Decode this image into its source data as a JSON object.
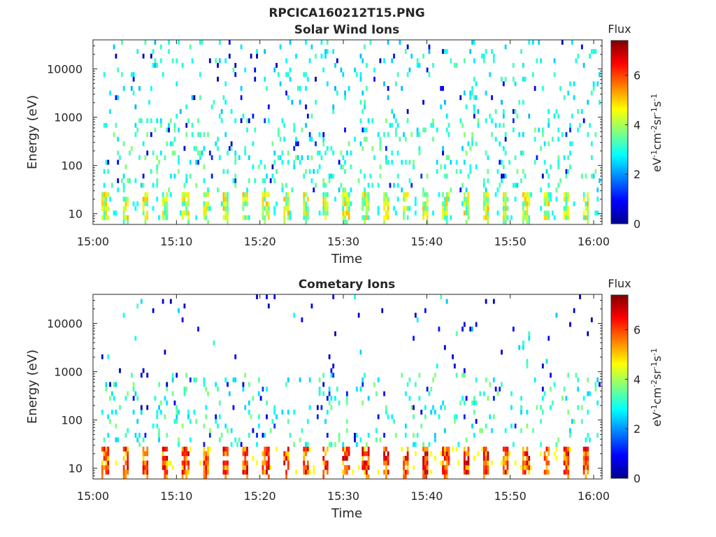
{
  "figure_title": "RPCICA160212T15.PNG",
  "colors": {
    "axis": "#262626",
    "colormap": [
      "#00008f",
      "#0000ff",
      "#0080ff",
      "#00ffff",
      "#80ff80",
      "#ffff00",
      "#ff8000",
      "#ff0000",
      "#800000"
    ]
  },
  "chart_data": [
    {
      "type": "heatmap",
      "title": "Solar Wind Ions",
      "xlabel": "Time",
      "ylabel": "Energy (eV)",
      "x_ticks": [
        "15:00",
        "15:10",
        "15:20",
        "15:30",
        "15:40",
        "15:50",
        "16:00"
      ],
      "x_range_minutes": [
        0,
        61
      ],
      "y_scale": "log",
      "y_ticks": [
        "10",
        "100",
        "1000",
        "10000"
      ],
      "y_range": [
        6,
        40000
      ],
      "colorbar": {
        "title": "Flux",
        "label": "eV-1cm-2sr-1s-1",
        "ticks": [
          "0",
          "2",
          "4",
          "6"
        ],
        "range": [
          0,
          7.4
        ]
      },
      "pattern": "sparse scattered counts above 100 eV; pulsed bands around 10-30 eV every ~2 minutes",
      "low_band_level": 3.8,
      "pulse_interval_min": 2.4
    },
    {
      "type": "heatmap",
      "title": "Cometary Ions",
      "xlabel": "Time",
      "ylabel": "Energy (eV)",
      "x_ticks": [
        "15:00",
        "15:10",
        "15:20",
        "15:30",
        "15:40",
        "15:50",
        "16:00"
      ],
      "x_range_minutes": [
        0,
        61
      ],
      "y_scale": "log",
      "y_ticks": [
        "10",
        "100",
        "1000",
        "10000"
      ],
      "y_range": [
        6,
        40000
      ],
      "colorbar": {
        "title": "Flux",
        "label": "eV-1cm-2sr-1s-1",
        "ticks": [
          "0",
          "2",
          "4",
          "6"
        ],
        "range": [
          0,
          7.4
        ]
      },
      "pattern": "sparse counts 100-1000 eV; intense pulsed bands around 10-30 eV every ~2 minutes",
      "low_band_level": 5.6,
      "pulse_interval_min": 2.4
    }
  ]
}
